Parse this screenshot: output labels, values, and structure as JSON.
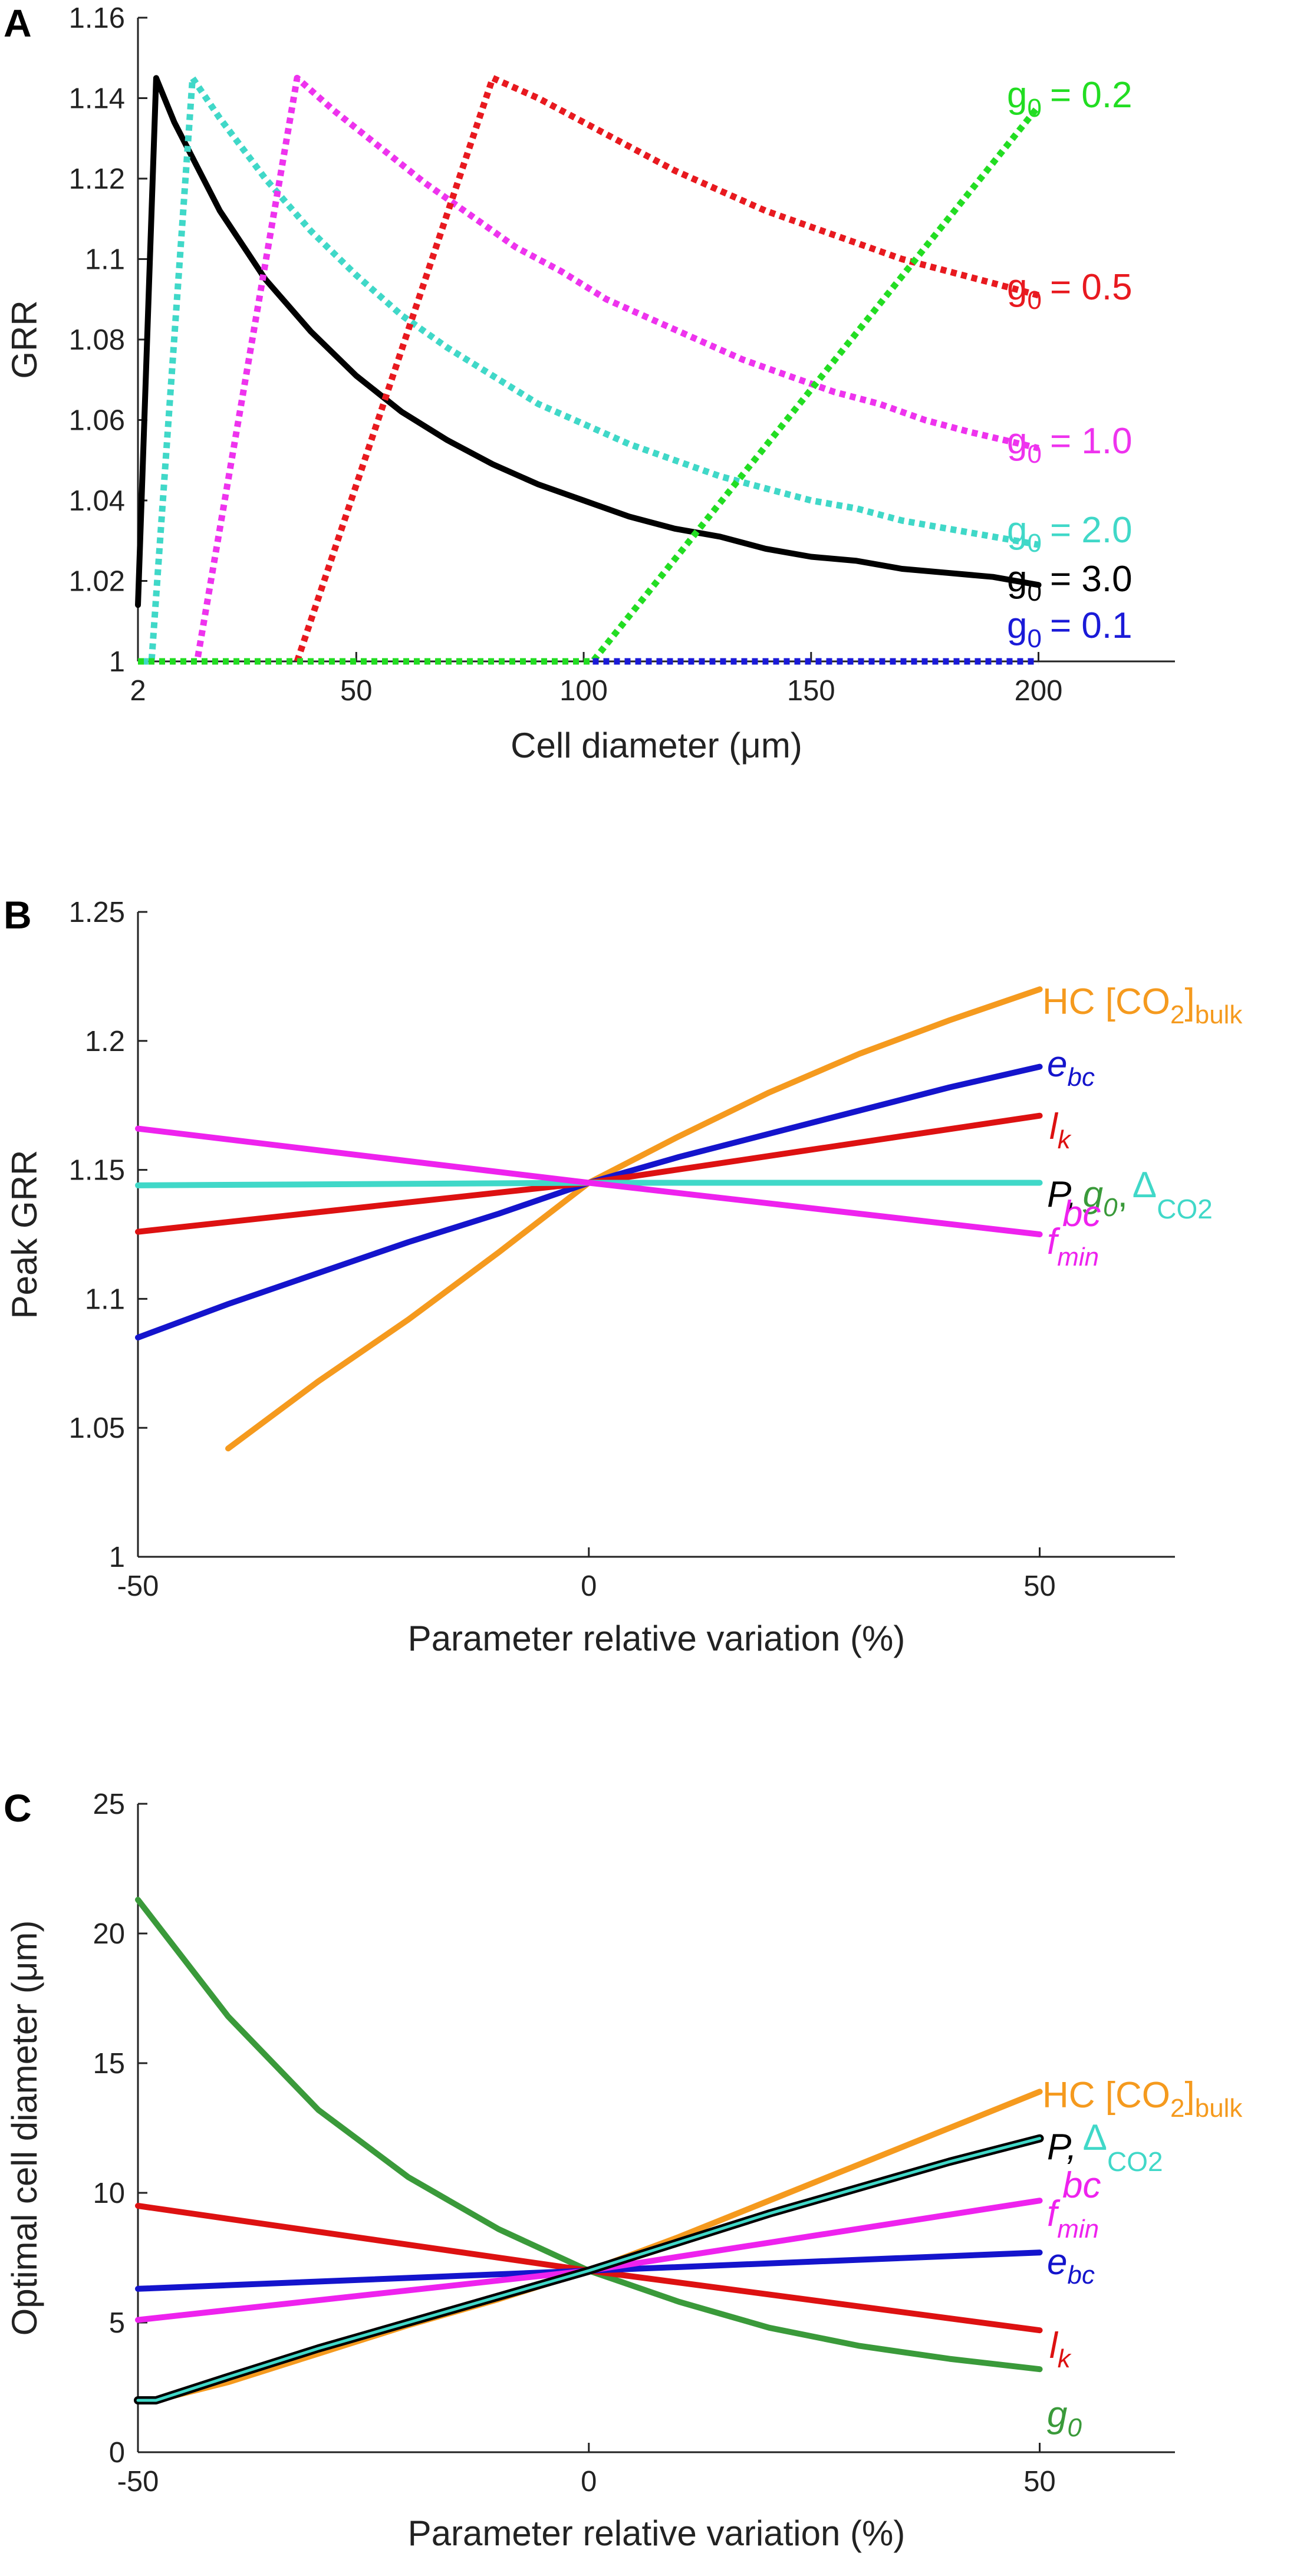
{
  "chart_data": [
    {
      "panel": "A",
      "type": "line",
      "xlabel": "Cell diameter (μm)",
      "ylabel": "GRR",
      "x_ticks": [
        "2",
        "50",
        "100",
        "150",
        "200"
      ],
      "y_ticks": [
        "1",
        "1.02",
        "1.04",
        "1.06",
        "1.08",
        "1.1",
        "1.12",
        "1.14",
        "1.16"
      ],
      "xlim": [
        2,
        230
      ],
      "ylim": [
        1,
        1.16
      ],
      "series": [
        {
          "name": "g0 = 3.0",
          "color": "#000000",
          "style": "solid",
          "label": "g",
          "sub": "0",
          "value_text": "= 3.0",
          "points": [
            [
              2,
              1.014
            ],
            [
              6,
              1.145
            ],
            [
              10,
              1.134
            ],
            [
              20,
              1.112
            ],
            [
              30,
              1.095
            ],
            [
              40,
              1.082
            ],
            [
              50,
              1.071
            ],
            [
              60,
              1.062
            ],
            [
              70,
              1.055
            ],
            [
              80,
              1.049
            ],
            [
              90,
              1.044
            ],
            [
              100,
              1.04
            ],
            [
              110,
              1.036
            ],
            [
              120,
              1.033
            ],
            [
              130,
              1.031
            ],
            [
              140,
              1.028
            ],
            [
              150,
              1.026
            ],
            [
              160,
              1.025
            ],
            [
              170,
              1.023
            ],
            [
              180,
              1.022
            ],
            [
              190,
              1.021
            ],
            [
              200,
              1.019
            ]
          ]
        },
        {
          "name": "g0 = 2.0",
          "color": "#40d8c8",
          "style": "dotted",
          "label": "g",
          "sub": "0",
          "value_text": "= 2.0",
          "points": [
            [
              3,
              1.0
            ],
            [
              5,
              1.0
            ],
            [
              14,
              1.145
            ],
            [
              20,
              1.135
            ],
            [
              30,
              1.12
            ],
            [
              40,
              1.107
            ],
            [
              50,
              1.096
            ],
            [
              60,
              1.086
            ],
            [
              70,
              1.078
            ],
            [
              80,
              1.071
            ],
            [
              90,
              1.064
            ],
            [
              100,
              1.059
            ],
            [
              110,
              1.054
            ],
            [
              120,
              1.05
            ],
            [
              130,
              1.046
            ],
            [
              140,
              1.043
            ],
            [
              150,
              1.04
            ],
            [
              160,
              1.038
            ],
            [
              170,
              1.035
            ],
            [
              180,
              1.033
            ],
            [
              190,
              1.031
            ],
            [
              200,
              1.029
            ]
          ]
        },
        {
          "name": "g0 = 1.0",
          "color": "#ee33ee",
          "style": "dotted",
          "label": "g",
          "sub": "0",
          "value_text": "= 1.0",
          "points": [
            [
              2,
              1.0
            ],
            [
              15,
              1.0
            ],
            [
              37,
              1.145
            ],
            [
              45,
              1.137
            ],
            [
              55,
              1.128
            ],
            [
              65,
              1.119
            ],
            [
              75,
              1.111
            ],
            [
              85,
              1.103
            ],
            [
              95,
              1.097
            ],
            [
              105,
              1.09
            ],
            [
              115,
              1.085
            ],
            [
              125,
              1.08
            ],
            [
              135,
              1.075
            ],
            [
              145,
              1.071
            ],
            [
              155,
              1.067
            ],
            [
              165,
              1.064
            ],
            [
              175,
              1.06
            ],
            [
              185,
              1.057
            ],
            [
              200,
              1.053
            ]
          ]
        },
        {
          "name": "g0 = 0.5",
          "color": "#e8191f",
          "style": "dotted",
          "label": "g",
          "sub": "0",
          "value_text": "= 0.5",
          "points": [
            [
              2,
              1.0
            ],
            [
              37,
              1.0
            ],
            [
              80,
              1.145
            ],
            [
              90,
              1.14
            ],
            [
              100,
              1.134
            ],
            [
              110,
              1.128
            ],
            [
              120,
              1.122
            ],
            [
              130,
              1.117
            ],
            [
              140,
              1.112
            ],
            [
              150,
              1.108
            ],
            [
              160,
              1.104
            ],
            [
              170,
              1.1
            ],
            [
              180,
              1.097
            ],
            [
              190,
              1.094
            ],
            [
              200,
              1.091
            ]
          ]
        },
        {
          "name": "g0 = 0.2",
          "color": "#22dd22",
          "style": "dotted",
          "label": "g",
          "sub": "0",
          "value_text": "= 0.2",
          "points": [
            [
              2,
              1.0
            ],
            [
              102,
              1.0
            ],
            [
              200,
              1.138
            ]
          ]
        },
        {
          "name": "g0 = 0.1",
          "color": "#1a1ad8",
          "style": "dotted",
          "label": "g",
          "sub": "0",
          "value_text": "= 0.1",
          "points": [
            [
              102,
              1.0
            ],
            [
              200,
              1.0
            ]
          ]
        }
      ]
    },
    {
      "panel": "B",
      "type": "line",
      "xlabel": "Parameter relative variation (%)",
      "ylabel": "Peak GRR",
      "x_ticks": [
        "-50",
        "0",
        "50"
      ],
      "y_ticks": [
        "1",
        "1.05",
        "1.1",
        "1.15",
        "1.2",
        "1.25"
      ],
      "xlim": [
        -50,
        65
      ],
      "ylim": [
        1,
        1.25
      ],
      "series": [
        {
          "name": "HC [CO2]bulk",
          "color": "#f59a1e",
          "points": [
            [
              -40,
              1.042
            ],
            [
              -30,
              1.068
            ],
            [
              -20,
              1.092
            ],
            [
              -10,
              1.118
            ],
            [
              0,
              1.145
            ],
            [
              10,
              1.163
            ],
            [
              20,
              1.18
            ],
            [
              30,
              1.195
            ],
            [
              40,
              1.208
            ],
            [
              50,
              1.22
            ]
          ]
        },
        {
          "name": "e_bc",
          "color": "#1414cc",
          "points": [
            [
              -50,
              1.085
            ],
            [
              -40,
              1.098
            ],
            [
              -30,
              1.11
            ],
            [
              -20,
              1.122
            ],
            [
              -10,
              1.133
            ],
            [
              0,
              1.145
            ],
            [
              10,
              1.155
            ],
            [
              20,
              1.164
            ],
            [
              30,
              1.173
            ],
            [
              40,
              1.182
            ],
            [
              50,
              1.19
            ]
          ]
        },
        {
          "name": "l_k",
          "color": "#dd1111",
          "points": [
            [
              -50,
              1.126
            ],
            [
              0,
              1.145
            ],
            [
              50,
              1.171
            ]
          ]
        },
        {
          "name": "P, g0, ΔCO2",
          "color": "#40d8c8",
          "points": [
            [
              -50,
              1.144
            ],
            [
              0,
              1.145
            ],
            [
              50,
              1.145
            ]
          ]
        },
        {
          "name": "f_min^bc",
          "color": "#ee22ee",
          "points": [
            [
              -50,
              1.166
            ],
            [
              0,
              1.145
            ],
            [
              50,
              1.125
            ]
          ]
        }
      ]
    },
    {
      "panel": "C",
      "type": "line",
      "xlabel": "Parameter relative variation (%)",
      "ylabel": "Optimal cell diameter (μm)",
      "x_ticks": [
        "-50",
        "0",
        "50"
      ],
      "y_ticks": [
        "0",
        "5",
        "10",
        "15",
        "20",
        "25"
      ],
      "xlim": [
        -50,
        65
      ],
      "ylim": [
        0,
        25
      ],
      "series": [
        {
          "name": "g0",
          "color": "#3a9a3a",
          "points": [
            [
              -50,
              21.3
            ],
            [
              -40,
              16.8
            ],
            [
              -30,
              13.2
            ],
            [
              -20,
              10.6
            ],
            [
              -10,
              8.6
            ],
            [
              0,
              7.0
            ],
            [
              10,
              5.8
            ],
            [
              20,
              4.8
            ],
            [
              30,
              4.1
            ],
            [
              40,
              3.6
            ],
            [
              50,
              3.2
            ]
          ]
        },
        {
          "name": "l_k",
          "color": "#dd1111",
          "points": [
            [
              -50,
              9.5
            ],
            [
              0,
              7.0
            ],
            [
              50,
              4.7
            ]
          ]
        },
        {
          "name": "e_bc",
          "color": "#1414cc",
          "points": [
            [
              -50,
              6.3
            ],
            [
              0,
              7.0
            ],
            [
              50,
              7.7
            ]
          ]
        },
        {
          "name": "f_min^bc",
          "color": "#ee22ee",
          "points": [
            [
              -50,
              5.1
            ],
            [
              0,
              7.0
            ],
            [
              50,
              9.7
            ]
          ]
        },
        {
          "name": "HC [CO2]bulk",
          "color": "#f59a1e",
          "points": [
            [
              -50,
              2.0
            ],
            [
              -48,
              2.0
            ],
            [
              -40,
              2.7
            ],
            [
              -30,
              3.8
            ],
            [
              -20,
              4.9
            ],
            [
              -10,
              5.9
            ],
            [
              0,
              7.0
            ],
            [
              10,
              8.3
            ],
            [
              20,
              9.7
            ],
            [
              30,
              11.1
            ],
            [
              40,
              12.5
            ],
            [
              50,
              13.9
            ]
          ]
        },
        {
          "name": "P",
          "color": "#000000",
          "points": [
            [
              -50,
              2.0
            ],
            [
              -48,
              2.0
            ],
            [
              -40,
              2.9
            ],
            [
              -30,
              4.0
            ],
            [
              -20,
              5.0
            ],
            [
              -10,
              6.0
            ],
            [
              0,
              7.0
            ],
            [
              10,
              8.1
            ],
            [
              20,
              9.2
            ],
            [
              30,
              10.2
            ],
            [
              40,
              11.2
            ],
            [
              50,
              12.1
            ]
          ]
        },
        {
          "name": "ΔCO2",
          "color": "#40d8c8",
          "points": [
            [
              -50,
              2.0
            ],
            [
              -48,
              2.0
            ],
            [
              -40,
              2.9
            ],
            [
              -30,
              4.0
            ],
            [
              -20,
              5.0
            ],
            [
              -10,
              6.0
            ],
            [
              0,
              7.0
            ],
            [
              10,
              8.1
            ],
            [
              20,
              9.2
            ],
            [
              30,
              10.2
            ],
            [
              40,
              11.2
            ],
            [
              50,
              12.1
            ]
          ]
        }
      ]
    }
  ],
  "labels": {
    "panelA": "A",
    "panelB": "B",
    "panelC": "C",
    "g": "g",
    "sub0": "0",
    "gA_02": "= 0.2",
    "gA_05": "= 0.5",
    "gA_10": "= 1.0",
    "gA_20": "= 2.0",
    "gA_30": "= 3.0",
    "gA_01": "= 0.1",
    "HC": "HC [CO",
    "sub2": "2",
    "bulk_close": "]",
    "bulk": "bulk",
    "e": "e",
    "bc": "bc",
    "l": "l",
    "k": "k",
    "P": "P,",
    "comma": ",",
    "delta": "Δ",
    "CO2": "CO2",
    "f": "f",
    "min": "min"
  }
}
